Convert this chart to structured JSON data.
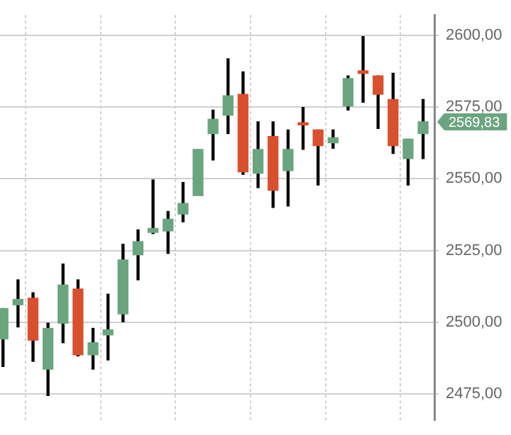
{
  "chart_data": {
    "type": "candlestick",
    "categories": [
      null,
      null,
      null,
      null,
      null,
      null,
      null,
      null,
      null,
      null,
      null,
      null,
      null,
      null,
      null,
      null,
      null,
      null,
      null,
      null,
      null,
      null,
      null,
      null,
      null,
      null,
      null,
      null,
      null
    ],
    "ohlc": [
      [
        2494.2,
        2504.8,
        2484.6,
        2504.8
      ],
      [
        2506.1,
        2514.8,
        2498.4,
        2508.0
      ],
      [
        2508.4,
        2510.3,
        2486.4,
        2493.8
      ],
      [
        2483.7,
        2499.7,
        2474.5,
        2497.9
      ],
      [
        2499.7,
        2520.3,
        2492.9,
        2513.0
      ],
      [
        2511.6,
        2514.8,
        2488.3,
        2488.7
      ],
      [
        2488.7,
        2497.9,
        2483.7,
        2492.9
      ],
      [
        2495.6,
        2509.8,
        2486.9,
        2497.4
      ],
      [
        2502.9,
        2527.2,
        2500.2,
        2521.7
      ],
      [
        2523.5,
        2532.2,
        2514.8,
        2528.1
      ],
      [
        2531.3,
        2549.6,
        2530.9,
        2532.7
      ],
      [
        2531.8,
        2538.6,
        2524.0,
        2535.9
      ],
      [
        2537.7,
        2548.7,
        2535.0,
        2541.4
      ],
      [
        2544.1,
        2560.2,
        2544.1,
        2560.2
      ],
      [
        2565.7,
        2573.9,
        2556.5,
        2570.7
      ],
      [
        2572.1,
        2591.8,
        2565.7,
        2578.9
      ],
      [
        2579.4,
        2587.2,
        2551.5,
        2552.4
      ],
      [
        2551.9,
        2569.8,
        2546.9,
        2560.2
      ],
      [
        2564.7,
        2569.8,
        2540.0,
        2546.0
      ],
      [
        2552.8,
        2567.0,
        2540.5,
        2560.2
      ],
      [
        2569.5,
        2574.8,
        2560.2,
        2568.7
      ],
      [
        2567.0,
        2567.0,
        2547.8,
        2561.5
      ],
      [
        2562.5,
        2567.0,
        2560.6,
        2564.3
      ],
      [
        2575.3,
        2585.8,
        2573.9,
        2584.9
      ],
      [
        2587.6,
        2599.5,
        2576.6,
        2586.7
      ],
      [
        2585.8,
        2585.8,
        2567.5,
        2579.4
      ],
      [
        2577.6,
        2586.7,
        2558.8,
        2561.5
      ],
      [
        2557.0,
        2563.8,
        2547.8,
        2563.8
      ],
      [
        2565.7,
        2577.6,
        2557.0,
        2569.83
      ]
    ],
    "colors": [
      "#6aa57f",
      "#6aa57f",
      "#d9502f",
      "#6aa57f",
      "#6aa57f",
      "#d9502f",
      "#6aa57f",
      "#6aa57f",
      "#6aa57f",
      "#6aa57f",
      "#6aa57f",
      "#6aa57f",
      "#6aa57f",
      "#6aa57f",
      "#6aa57f",
      "#6aa57f",
      "#d9502f",
      "#6aa57f",
      "#d9502f",
      "#6aa57f",
      "#d9502f",
      "#d9502f",
      "#6aa57f",
      "#6aa57f",
      "#d9502f",
      "#d9502f",
      "#d9502f",
      "#6aa57f",
      "#6aa57f"
    ],
    "ylim": [
      2466,
      2607
    ],
    "yticks": [
      {
        "value": 2475,
        "label": "2475,00"
      },
      {
        "value": 2500,
        "label": "2500,00"
      },
      {
        "value": 2525,
        "label": "2525,00"
      },
      {
        "value": 2550,
        "label": "2550,00"
      },
      {
        "value": 2575,
        "label": "2575,00"
      },
      {
        "value": 2600,
        "label": "2600,00"
      }
    ],
    "grid": true,
    "annotations": [
      "2569,83"
    ]
  }
}
